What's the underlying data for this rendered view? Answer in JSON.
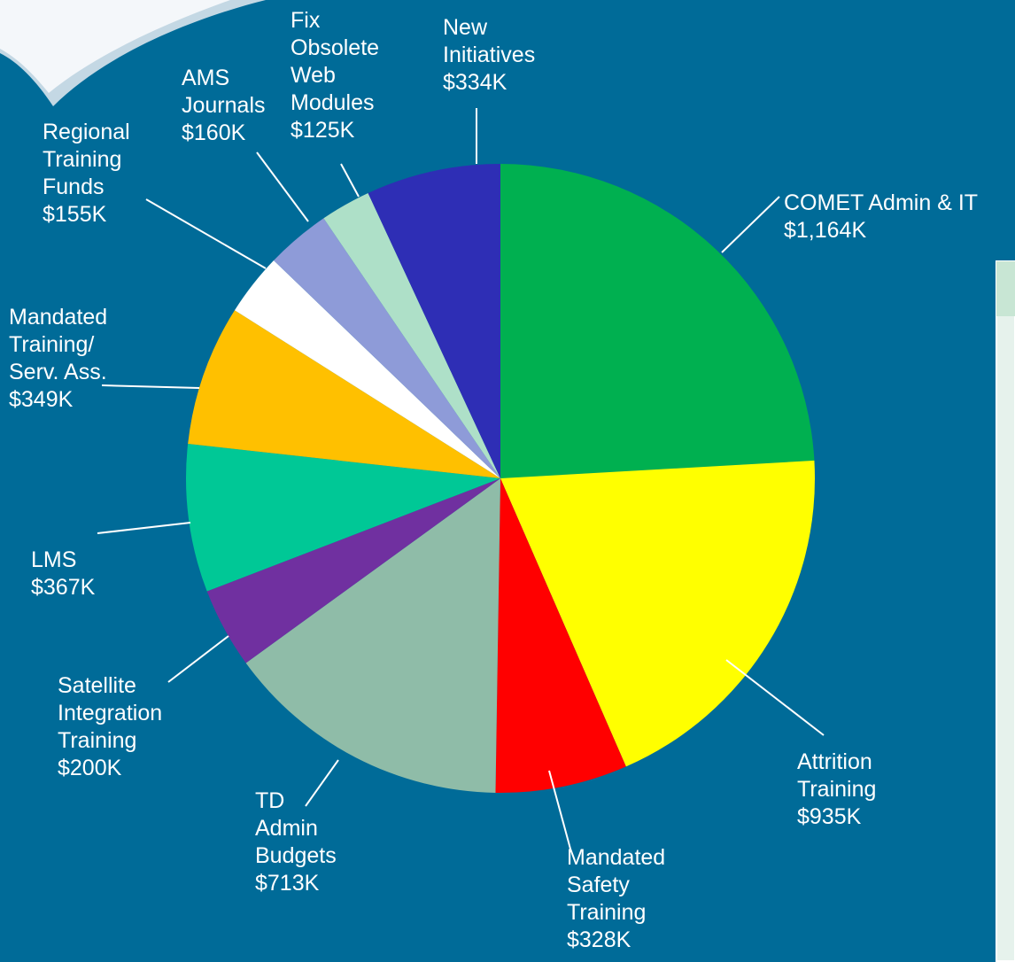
{
  "chart_data": {
    "type": "pie",
    "categories": [
      "COMET Admin & IT",
      "Attrition\nTraining",
      "Mandated\nSafety\nTraining",
      "TD\nAdmin\nBudgets",
      "Satellite\nIntegration\nTraining",
      "LMS",
      "Mandated\nTraining/\nServ. Ass.",
      "Regional\nTraining\nFunds",
      "AMS\nJournals",
      "Fix\nObsolete\nWeb\nModules",
      "New\nInitiatives"
    ],
    "values": [
      1164,
      935,
      328,
      713,
      200,
      367,
      349,
      155,
      160,
      125,
      334
    ],
    "value_labels": [
      "$1,164K",
      "$935K",
      "$328K",
      "$713K",
      "$200K",
      "$367K",
      "$349K",
      "$155K",
      "$160K",
      "$125K",
      "$334K"
    ],
    "colors": [
      "#00b050",
      "#ffff00",
      "#ff0000",
      "#8fbca8",
      "#7030a0",
      "#00c896",
      "#ffc000",
      "#ffffff",
      "#8e9bd8",
      "#aee0c8",
      "#2e2eb5"
    ]
  }
}
